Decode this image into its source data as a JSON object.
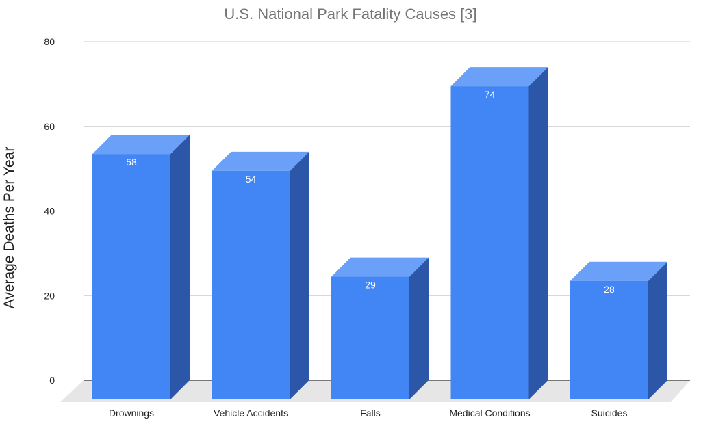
{
  "chart_data": {
    "type": "bar",
    "title": "U.S. National Park Fatality Causes [3]",
    "ylabel": "Average Deaths Per Year",
    "xlabel": "",
    "categories": [
      "Drownings",
      "Vehicle Accidents",
      "Falls",
      "Medical Conditions",
      "Suicides"
    ],
    "values": [
      58,
      54,
      29,
      74,
      28
    ],
    "data_labels": [
      "58",
      "54",
      "29",
      "74",
      "28"
    ],
    "ylim": [
      0,
      80
    ],
    "yticks": [
      0,
      20,
      40,
      60,
      80
    ],
    "grid": true,
    "three_d": true,
    "colors": {
      "bar_front": "#4285f4",
      "bar_top": "#6aa0f7",
      "bar_side": "#2c57a8",
      "floor": "#e6e6e6",
      "gridline": "#cccccc",
      "baseline": "#333333",
      "title": "#757575",
      "text": "#222222",
      "data_label": "#ffffff"
    }
  }
}
